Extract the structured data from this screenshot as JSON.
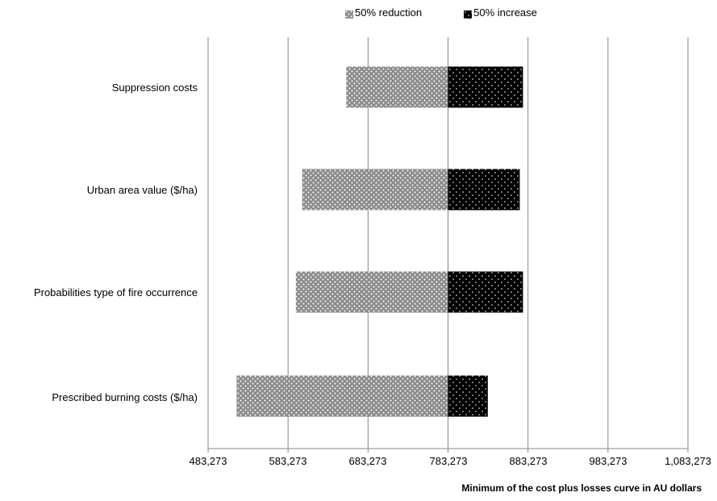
{
  "chart_data": {
    "type": "bar",
    "orientation": "horizontal",
    "subtype": "tornado",
    "base_value": 783273,
    "categories": [
      "Suppression costs",
      "Urban area value ($/ha)",
      "Probabilities type of fire occurrence",
      "Prescribed burning costs ($/ha)"
    ],
    "series": [
      {
        "name": "50% reduction",
        "values": [
          656000,
          601000,
          593000,
          519000
        ]
      },
      {
        "name": "50% increase",
        "values": [
          877000,
          873000,
          877000,
          833000
        ]
      }
    ],
    "xticks": [
      "483,273",
      "583,273",
      "683,273",
      "783,273",
      "883,273",
      "983,273",
      "1,083,273"
    ],
    "xlim": [
      483273,
      1083273
    ],
    "xlabel": "Minimum of the cost plus losses curve in AU dollars",
    "ylabel": "",
    "title": "",
    "grid": "vertical",
    "legend_position": "top"
  },
  "colors": {
    "reduction": "#8c8c8c",
    "increase": "#000000",
    "grid": "#888888",
    "axis": "#888888"
  }
}
